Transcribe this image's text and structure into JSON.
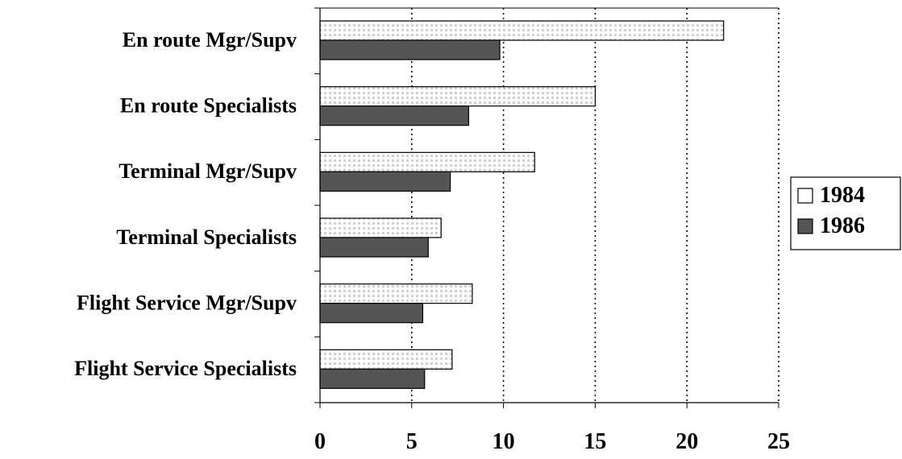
{
  "chart_data": {
    "type": "bar",
    "orientation": "horizontal",
    "title": "",
    "xlabel": "",
    "ylabel": "",
    "categories": [
      "En route Mgr/Supv",
      "En route Specialists",
      "Terminal Mgr/Supv",
      "Terminal Specialists",
      "Flight Service Mgr/Supv",
      "Flight Service Specialists"
    ],
    "series": [
      {
        "name": "1984",
        "color": "#ffffff",
        "values": [
          22.0,
          15.0,
          11.7,
          6.6,
          8.3,
          7.2
        ]
      },
      {
        "name": "1986",
        "color": "#555555",
        "values": [
          9.8,
          8.1,
          7.1,
          5.9,
          5.6,
          5.7
        ]
      }
    ],
    "xlim": [
      0,
      25
    ],
    "xticks": [
      "0",
      "5",
      "10",
      "15",
      "20",
      "25"
    ],
    "xtick_values": [
      0,
      5,
      10,
      15,
      20,
      25
    ],
    "grid": "vertical-dotted",
    "legend": "right"
  }
}
